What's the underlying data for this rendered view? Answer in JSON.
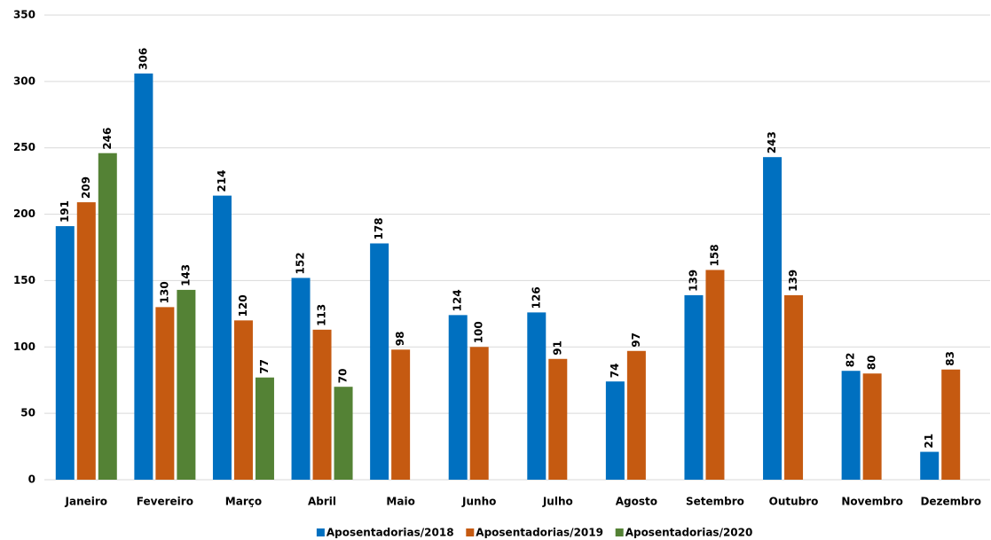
{
  "chart_data": {
    "type": "bar",
    "categories": [
      "Janeiro",
      "Fevereiro",
      "Março",
      "Abril",
      "Maio",
      "Junho",
      "Julho",
      "Agosto",
      "Setembro",
      "Outubro",
      "Novembro",
      "Dezembro"
    ],
    "series": [
      {
        "name": "Aposentadorias/2018",
        "color": "#0070c0",
        "values": [
          191,
          306,
          214,
          152,
          178,
          124,
          126,
          74,
          139,
          243,
          82,
          21
        ]
      },
      {
        "name": "Aposentadorias/2019",
        "color": "#c55a11",
        "values": [
          209,
          130,
          120,
          113,
          98,
          100,
          91,
          97,
          158,
          139,
          80,
          83
        ]
      },
      {
        "name": "Aposentadorias/2020",
        "color": "#548235",
        "values": [
          246,
          143,
          77,
          70,
          null,
          null,
          null,
          null,
          null,
          null,
          null,
          null
        ]
      }
    ],
    "ylim": [
      0,
      350
    ],
    "yticks": [
      0,
      50,
      100,
      150,
      200,
      250,
      300,
      350
    ],
    "grid": true,
    "legend": "bottom"
  }
}
